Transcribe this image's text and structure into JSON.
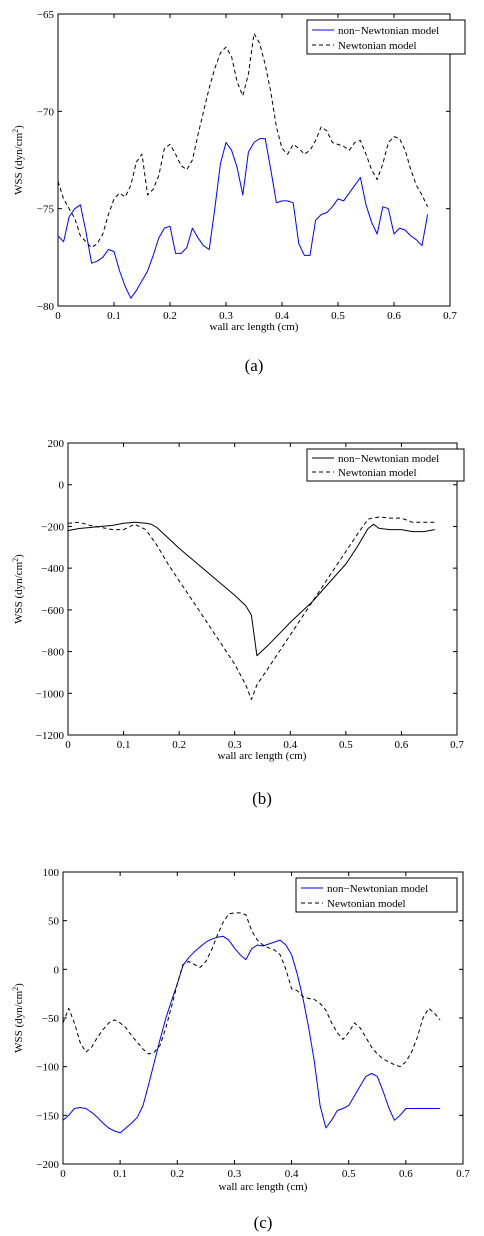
{
  "chart_data": [
    {
      "type": "line",
      "caption": "(a)",
      "xlabel": "wall arc length (cm)",
      "ylabel": "WSS (dyn/cm²)",
      "ylabel_main": "WSS (dyn/cm",
      "ylabel_sup": "2",
      "ylabel_close": ")",
      "xlim": [
        0,
        0.7
      ],
      "ylim": [
        -80,
        -65
      ],
      "xticks": [
        0,
        0.1,
        0.2,
        0.3,
        0.4,
        0.5,
        0.6,
        0.7
      ],
      "xtick_labels": [
        "0",
        "0.1",
        "0.2",
        "0.3",
        "0.4",
        "0.5",
        "0.6",
        "0.7"
      ],
      "yticks": [
        -80,
        -75,
        -70,
        -65
      ],
      "ytick_labels": [
        "−80",
        "−75",
        "−70",
        "−65"
      ],
      "legend_position": "top-right",
      "series": [
        {
          "name": "non−Newtonian model",
          "color": "#0000ff",
          "dash": "solid",
          "x": [
            0,
            0.01,
            0.02,
            0.03,
            0.04,
            0.05,
            0.06,
            0.07,
            0.08,
            0.09,
            0.1,
            0.11,
            0.12,
            0.13,
            0.14,
            0.15,
            0.16,
            0.17,
            0.18,
            0.19,
            0.2,
            0.21,
            0.22,
            0.23,
            0.24,
            0.25,
            0.26,
            0.27,
            0.28,
            0.29,
            0.3,
            0.31,
            0.32,
            0.33,
            0.34,
            0.35,
            0.36,
            0.37,
            0.38,
            0.39,
            0.4,
            0.41,
            0.42,
            0.43,
            0.44,
            0.45,
            0.46,
            0.47,
            0.48,
            0.49,
            0.5,
            0.51,
            0.52,
            0.53,
            0.54,
            0.55,
            0.56,
            0.57,
            0.58,
            0.59,
            0.6,
            0.61,
            0.62,
            0.63,
            0.64,
            0.65,
            0.66
          ],
          "y": [
            -76.4,
            -76.7,
            -75.4,
            -75.0,
            -74.8,
            -76.2,
            -77.8,
            -77.7,
            -77.5,
            -77.1,
            -77.2,
            -78.2,
            -79.0,
            -79.6,
            -79.2,
            -78.7,
            -78.2,
            -77.4,
            -76.5,
            -76.0,
            -75.9,
            -77.3,
            -77.3,
            -77.0,
            -76.0,
            -76.5,
            -76.9,
            -77.1,
            -75.0,
            -72.7,
            -71.6,
            -72.0,
            -72.9,
            -74.3,
            -72.1,
            -71.6,
            -71.4,
            -71.4,
            -73.0,
            -74.7,
            -74.6,
            -74.6,
            -74.7,
            -76.8,
            -77.4,
            -77.4,
            -75.6,
            -75.3,
            -75.2,
            -74.9,
            -74.5,
            -74.6,
            -74.2,
            -73.8,
            -73.4,
            -74.8,
            -75.7,
            -76.3,
            -74.9,
            -75.0,
            -76.3,
            -76.0,
            -76.1,
            -76.4,
            -76.6,
            -76.9,
            -75.3
          ]
        },
        {
          "name": "Newtonian model",
          "color": "#000000",
          "dash": "dashed",
          "x": [
            0,
            0.01,
            0.02,
            0.03,
            0.04,
            0.05,
            0.06,
            0.07,
            0.08,
            0.09,
            0.1,
            0.11,
            0.12,
            0.13,
            0.14,
            0.15,
            0.16,
            0.17,
            0.18,
            0.19,
            0.2,
            0.21,
            0.22,
            0.23,
            0.24,
            0.25,
            0.26,
            0.27,
            0.28,
            0.29,
            0.3,
            0.31,
            0.32,
            0.33,
            0.34,
            0.35,
            0.36,
            0.37,
            0.38,
            0.39,
            0.4,
            0.41,
            0.42,
            0.43,
            0.44,
            0.45,
            0.46,
            0.47,
            0.48,
            0.49,
            0.5,
            0.51,
            0.52,
            0.53,
            0.54,
            0.55,
            0.56,
            0.57,
            0.58,
            0.59,
            0.6,
            0.61,
            0.62,
            0.63,
            0.64,
            0.65,
            0.66
          ],
          "y": [
            -73.6,
            -74.5,
            -75.0,
            -75.5,
            -76.4,
            -76.7,
            -77.0,
            -76.8,
            -76.3,
            -75.3,
            -74.5,
            -74.2,
            -74.4,
            -73.8,
            -72.6,
            -72.2,
            -74.3,
            -74.0,
            -73.3,
            -71.9,
            -71.7,
            -72.2,
            -72.8,
            -73.0,
            -72.5,
            -71.2,
            -70.0,
            -68.8,
            -67.8,
            -67.0,
            -66.7,
            -67.2,
            -68.5,
            -69.2,
            -68.1,
            -66.0,
            -66.5,
            -67.6,
            -69.0,
            -70.8,
            -71.9,
            -72.2,
            -71.7,
            -71.9,
            -72.2,
            -72.0,
            -71.5,
            -70.8,
            -71.0,
            -71.6,
            -71.7,
            -71.8,
            -72.0,
            -71.6,
            -71.5,
            -72.2,
            -73.0,
            -73.5,
            -72.7,
            -71.6,
            -71.3,
            -71.4,
            -72.0,
            -73.0,
            -73.8,
            -74.3,
            -74.9
          ]
        }
      ]
    },
    {
      "type": "line",
      "caption": "(b)",
      "xlabel": "wall arc length (cm)",
      "ylabel": "WSS (dyn/cm²)",
      "ylabel_main": "WSS (dyn/cm",
      "ylabel_sup": "2",
      "ylabel_close": ")",
      "xlim": [
        0,
        0.7
      ],
      "ylim": [
        -1200,
        200
      ],
      "xticks": [
        0,
        0.1,
        0.2,
        0.3,
        0.4,
        0.5,
        0.6,
        0.7
      ],
      "xtick_labels": [
        "0",
        "0.1",
        "0.2",
        "0.3",
        "0.4",
        "0.5",
        "0.6",
        "0.7"
      ],
      "yticks": [
        -1200,
        -1000,
        -800,
        -600,
        -400,
        -200,
        0,
        200
      ],
      "ytick_labels": [
        "−1200",
        "−1000",
        "−800",
        "−600",
        "−400",
        "−200",
        "0",
        "200"
      ],
      "legend_position": "top-right",
      "series": [
        {
          "name": "non−Newtonian model",
          "color": "#000000",
          "dash": "solid",
          "x": [
            0,
            0.02,
            0.04,
            0.06,
            0.08,
            0.1,
            0.12,
            0.14,
            0.15,
            0.16,
            0.18,
            0.2,
            0.22,
            0.24,
            0.26,
            0.28,
            0.3,
            0.32,
            0.33,
            0.34,
            0.36,
            0.38,
            0.4,
            0.42,
            0.44,
            0.46,
            0.48,
            0.5,
            0.52,
            0.54,
            0.55,
            0.56,
            0.58,
            0.6,
            0.62,
            0.64,
            0.66
          ],
          "y": [
            -220,
            -210,
            -205,
            -200,
            -195,
            -185,
            -180,
            -185,
            -190,
            -205,
            -255,
            -305,
            -350,
            -395,
            -440,
            -485,
            -530,
            -580,
            -625,
            -820,
            -770,
            -715,
            -660,
            -610,
            -560,
            -500,
            -440,
            -380,
            -300,
            -210,
            -190,
            -210,
            -215,
            -215,
            -225,
            -225,
            -215
          ]
        },
        {
          "name": "Newtonian model",
          "color": "#000000",
          "dash": "dashed",
          "x": [
            0,
            0.02,
            0.04,
            0.06,
            0.08,
            0.1,
            0.12,
            0.14,
            0.16,
            0.18,
            0.2,
            0.22,
            0.24,
            0.26,
            0.28,
            0.3,
            0.32,
            0.33,
            0.34,
            0.36,
            0.38,
            0.4,
            0.42,
            0.44,
            0.46,
            0.48,
            0.5,
            0.52,
            0.54,
            0.56,
            0.58,
            0.6,
            0.62,
            0.64,
            0.66
          ],
          "y": [
            -185,
            -180,
            -195,
            -205,
            -215,
            -215,
            -190,
            -215,
            -290,
            -380,
            -460,
            -540,
            -620,
            -700,
            -780,
            -860,
            -960,
            -1030,
            -960,
            -880,
            -800,
            -720,
            -640,
            -560,
            -480,
            -400,
            -320,
            -240,
            -165,
            -155,
            -160,
            -160,
            -180,
            -180,
            -180
          ]
        }
      ]
    },
    {
      "type": "line",
      "caption": "(c)",
      "xlabel": "wall arc length (cm)",
      "ylabel": "WSS (dyn/cm²)",
      "ylabel_main": "WSS (dyn/cm",
      "ylabel_sup": "2",
      "ylabel_close": ")",
      "xlim": [
        0,
        0.7
      ],
      "ylim": [
        -200,
        100
      ],
      "xticks": [
        0,
        0.1,
        0.2,
        0.3,
        0.4,
        0.5,
        0.6,
        0.7
      ],
      "xtick_labels": [
        "0",
        "0.1",
        "0.2",
        "0.3",
        "0.4",
        "0.5",
        "0.6",
        "0.7"
      ],
      "yticks": [
        -200,
        -150,
        -100,
        -50,
        0,
        50,
        100
      ],
      "ytick_labels": [
        "−200",
        "−150",
        "−100",
        "−50",
        "0",
        "50",
        "100"
      ],
      "legend_position": "top-right",
      "series": [
        {
          "name": "non−Newtonian model",
          "color": "#0000ff",
          "dash": "solid",
          "x": [
            0,
            0.01,
            0.02,
            0.03,
            0.04,
            0.05,
            0.06,
            0.07,
            0.08,
            0.09,
            0.1,
            0.11,
            0.12,
            0.13,
            0.14,
            0.15,
            0.16,
            0.17,
            0.18,
            0.19,
            0.2,
            0.21,
            0.22,
            0.23,
            0.24,
            0.25,
            0.26,
            0.27,
            0.28,
            0.29,
            0.3,
            0.31,
            0.32,
            0.33,
            0.34,
            0.35,
            0.36,
            0.37,
            0.38,
            0.39,
            0.4,
            0.41,
            0.42,
            0.43,
            0.44,
            0.45,
            0.46,
            0.47,
            0.48,
            0.49,
            0.5,
            0.51,
            0.52,
            0.53,
            0.54,
            0.55,
            0.56,
            0.57,
            0.58,
            0.59,
            0.6,
            0.61,
            0.62,
            0.63,
            0.64,
            0.65,
            0.66
          ],
          "y": [
            -155,
            -150,
            -143,
            -142,
            -143,
            -147,
            -152,
            -158,
            -163,
            -166,
            -168,
            -163,
            -158,
            -152,
            -140,
            -118,
            -95,
            -72,
            -50,
            -32,
            -15,
            4,
            12,
            18,
            23,
            28,
            31,
            33,
            34,
            30,
            22,
            15,
            10,
            21,
            25,
            24,
            26,
            28,
            30,
            25,
            15,
            -5,
            -30,
            -60,
            -95,
            -140,
            -163,
            -155,
            -145,
            -143,
            -140,
            -130,
            -120,
            -110,
            -107,
            -110,
            -125,
            -142,
            -155,
            -150,
            -143,
            -143,
            -143,
            -143,
            -143,
            -143,
            -143
          ]
        },
        {
          "name": "Newtonian model",
          "color": "#000000",
          "dash": "dashed",
          "x": [
            0,
            0.01,
            0.02,
            0.03,
            0.04,
            0.05,
            0.06,
            0.07,
            0.08,
            0.09,
            0.1,
            0.11,
            0.12,
            0.13,
            0.14,
            0.15,
            0.16,
            0.17,
            0.18,
            0.19,
            0.2,
            0.21,
            0.22,
            0.23,
            0.24,
            0.25,
            0.26,
            0.27,
            0.28,
            0.29,
            0.3,
            0.31,
            0.32,
            0.33,
            0.34,
            0.35,
            0.36,
            0.37,
            0.38,
            0.39,
            0.4,
            0.41,
            0.42,
            0.43,
            0.44,
            0.45,
            0.46,
            0.47,
            0.48,
            0.49,
            0.5,
            0.51,
            0.52,
            0.53,
            0.54,
            0.55,
            0.56,
            0.57,
            0.58,
            0.59,
            0.6,
            0.61,
            0.62,
            0.63,
            0.64,
            0.65,
            0.66
          ],
          "y": [
            -55,
            -40,
            -55,
            -75,
            -85,
            -80,
            -70,
            -62,
            -55,
            -52,
            -55,
            -60,
            -68,
            -75,
            -82,
            -87,
            -85,
            -78,
            -60,
            -38,
            -15,
            5,
            8,
            5,
            2,
            8,
            20,
            35,
            48,
            57,
            58,
            58,
            56,
            40,
            30,
            25,
            22,
            20,
            15,
            0,
            -20,
            -22,
            -28,
            -30,
            -31,
            -35,
            -42,
            -55,
            -65,
            -72,
            -65,
            -55,
            -60,
            -70,
            -80,
            -87,
            -92,
            -95,
            -98,
            -100,
            -95,
            -85,
            -70,
            -50,
            -40,
            -45,
            -52
          ]
        }
      ]
    }
  ]
}
